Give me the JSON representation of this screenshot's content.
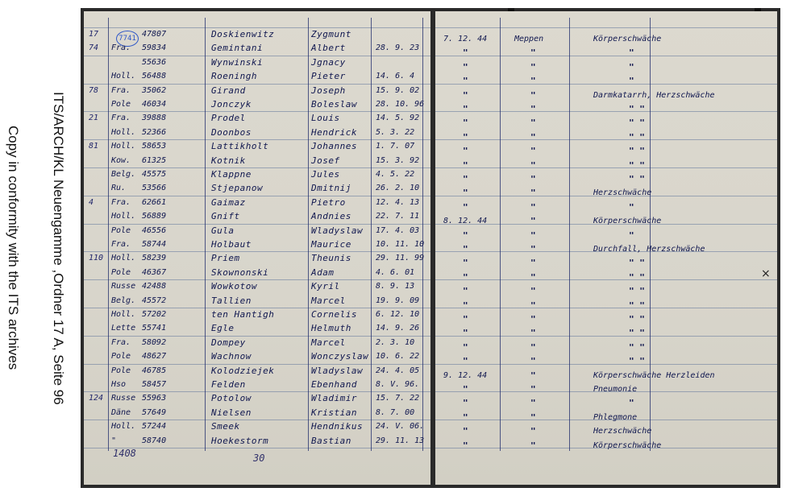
{
  "caption": {
    "line1": "ITS/ARCH/KL Neuengamme ,Ordner 17 A,  Seite 96",
    "line2": "Copy in conformity with the ITS archives"
  },
  "ledger": {
    "stamp": "7741",
    "margin_numbers": [
      "17",
      "74",
      "",
      "",
      "78",
      "",
      "21",
      "",
      "81",
      "",
      "",
      "",
      "4",
      "",
      "",
      "",
      "110",
      "",
      "",
      "",
      "",
      "",
      "",
      "",
      "",
      "",
      "124",
      ""
    ],
    "rows": [
      {
        "nat": "",
        "num": "47807",
        "surname": "Doskienwitz",
        "first": "Zygmunt",
        "date": ""
      },
      {
        "nat": "Fra.",
        "num": "59834",
        "surname": "Gemintani",
        "first": "Albert",
        "date": "28. 9. 23"
      },
      {
        "nat": "",
        "num": "55636",
        "surname": "Wynwinski",
        "first": "Jgnacy",
        "date": ""
      },
      {
        "nat": "Holl.",
        "num": "56488",
        "surname": "Roeningh",
        "first": "Pieter",
        "date": "14. 6. 4"
      },
      {
        "nat": "Fra.",
        "num": "35062",
        "surname": "Girand",
        "first": "Joseph",
        "date": "15. 9. 02"
      },
      {
        "nat": "Pole",
        "num": "46034",
        "surname": "Jonczyk",
        "first": "Boleslaw",
        "date": "28. 10. 96"
      },
      {
        "nat": "Fra.",
        "num": "39888",
        "surname": "Prodel",
        "first": "Louis",
        "date": "14. 5. 92"
      },
      {
        "nat": "Holl.",
        "num": "52366",
        "surname": "Doonbos",
        "first": "Hendrick",
        "date": "5. 3. 22"
      },
      {
        "nat": "Holl.",
        "num": "58653",
        "surname": "Lattikholt",
        "first": "Johannes",
        "date": "1. 7. 07"
      },
      {
        "nat": "Kow.",
        "num": "61325",
        "surname": "Kotnik",
        "first": "Josef",
        "date": "15. 3. 92"
      },
      {
        "nat": "Belg.",
        "num": "45575",
        "surname": "Klappne",
        "first": "Jules",
        "date": "4. 5. 22"
      },
      {
        "nat": "Ru.",
        "num": "53566",
        "surname": "Stjepanow",
        "first": "Dmitnij",
        "date": "26. 2. 10"
      },
      {
        "nat": "Fra.",
        "num": "62661",
        "surname": "Gaimaz",
        "first": "Pietro",
        "date": "12. 4. 13"
      },
      {
        "nat": "Holl.",
        "num": "56889",
        "surname": "Gnift",
        "first": "Andnies",
        "date": "22. 7. 11"
      },
      {
        "nat": "Pole",
        "num": "46556",
        "surname": "Gula",
        "first": "Wladyslaw",
        "date": "17. 4. 03"
      },
      {
        "nat": "Fra.",
        "num": "58744",
        "surname": "Holbaut",
        "first": "Maurice",
        "date": "10. 11. 10"
      },
      {
        "nat": "Holl.",
        "num": "58239",
        "surname": "Priem",
        "first": "Theunis",
        "date": "29. 11. 99"
      },
      {
        "nat": "Pole",
        "num": "46367",
        "surname": "Skownonski",
        "first": "Adam",
        "date": "4. 6. 01"
      },
      {
        "nat": "Russe",
        "num": "42488",
        "surname": "Wowkotow",
        "first": "Kyril",
        "date": "8. 9. 13"
      },
      {
        "nat": "Belg.",
        "num": "45572",
        "surname": "Tallien",
        "first": "Marcel",
        "date": "19. 9. 09"
      },
      {
        "nat": "Holl.",
        "num": "57202",
        "surname": "ten Hantigh",
        "first": "Cornelis",
        "date": "6. 12. 10"
      },
      {
        "nat": "Lette",
        "num": "55741",
        "surname": "Egle",
        "first": "Helmuth",
        "date": "14. 9. 26"
      },
      {
        "nat": "Fra.",
        "num": "58092",
        "surname": "Dompey",
        "first": "Marcel",
        "date": "2. 3. 10"
      },
      {
        "nat": "Pole",
        "num": "48627",
        "surname": "Wachnow",
        "first": "Wonczyslaw",
        "date": "10. 6. 22"
      },
      {
        "nat": "Pole",
        "num": "46785",
        "surname": "Kolodziejek",
        "first": "Wladyslaw",
        "date": "24. 4. 05"
      },
      {
        "nat": "Hso",
        "num": "58457",
        "surname": "Felden",
        "first": "Ebenhand",
        "date": "8. V. 96."
      },
      {
        "nat": "Russe",
        "num": "55963",
        "surname": "Potolow",
        "first": "Wladimir",
        "date": "15. 7. 22"
      },
      {
        "nat": "Däne",
        "num": "57649",
        "surname": "Nielsen",
        "first": "Kristian",
        "date": "8. 7. 00"
      },
      {
        "nat": "Holl.",
        "num": "57244",
        "surname": "Smeek",
        "first": "Hendnikus",
        "date": "24. V. 06."
      },
      {
        "nat": "\"",
        "num": "58740",
        "surname": "Hoekestorm",
        "first": "Bastian",
        "date": "29. 11. 13"
      }
    ],
    "right_rows": [
      {
        "date": "7. 12. 44",
        "place": "Meppen",
        "cause": "Körperschwäche"
      },
      {
        "date": "\"",
        "place": "\"",
        "cause": "\""
      },
      {
        "date": "\"",
        "place": "\"",
        "cause": "\""
      },
      {
        "date": "\"",
        "place": "\"",
        "cause": "\""
      },
      {
        "date": "\"",
        "place": "\"",
        "cause": "Darmkatarrh, Herzschwäche"
      },
      {
        "date": "\"",
        "place": "\"",
        "cause": "\"   \""
      },
      {
        "date": "\"",
        "place": "\"",
        "cause": "\"   \""
      },
      {
        "date": "\"",
        "place": "\"",
        "cause": "\"   \""
      },
      {
        "date": "\"",
        "place": "\"",
        "cause": "\"   \""
      },
      {
        "date": "\"",
        "place": "\"",
        "cause": "\"   \""
      },
      {
        "date": "\"",
        "place": "\"",
        "cause": "\"   \""
      },
      {
        "date": "\"",
        "place": "\"",
        "cause": "Herzschwäche"
      },
      {
        "date": "\"",
        "place": "\"",
        "cause": "\""
      },
      {
        "date": "8. 12. 44",
        "place": "\"",
        "cause": "Körperschwäche"
      },
      {
        "date": "\"",
        "place": "\"",
        "cause": "\""
      },
      {
        "date": "\"",
        "place": "\"",
        "cause": "Durchfall, Herzschwäche"
      },
      {
        "date": "\"",
        "place": "\"",
        "cause": "\"   \""
      },
      {
        "date": "\"",
        "place": "\"",
        "cause": "\"   \""
      },
      {
        "date": "\"",
        "place": "\"",
        "cause": "\"   \""
      },
      {
        "date": "\"",
        "place": "\"",
        "cause": "\"   \""
      },
      {
        "date": "\"",
        "place": "\"",
        "cause": "\"   \""
      },
      {
        "date": "\"",
        "place": "\"",
        "cause": "\"   \""
      },
      {
        "date": "\"",
        "place": "\"",
        "cause": "\"   \""
      },
      {
        "date": "\"",
        "place": "\"",
        "cause": "\"   \""
      },
      {
        "date": "9. 12. 44",
        "place": "\"",
        "cause": "Körperschwäche Herzleiden"
      },
      {
        "date": "\"",
        "place": "\"",
        "cause": "Pneumonie"
      },
      {
        "date": "\"",
        "place": "\"",
        "cause": "\""
      },
      {
        "date": "\"",
        "place": "\"",
        "cause": "Phlegmone"
      },
      {
        "date": "\"",
        "place": "\"",
        "cause": "Herzschwäche"
      },
      {
        "date": "\"",
        "place": "\"",
        "cause": "Körperschwäche"
      }
    ],
    "footer_left": "1408",
    "footer_mid": "30"
  }
}
